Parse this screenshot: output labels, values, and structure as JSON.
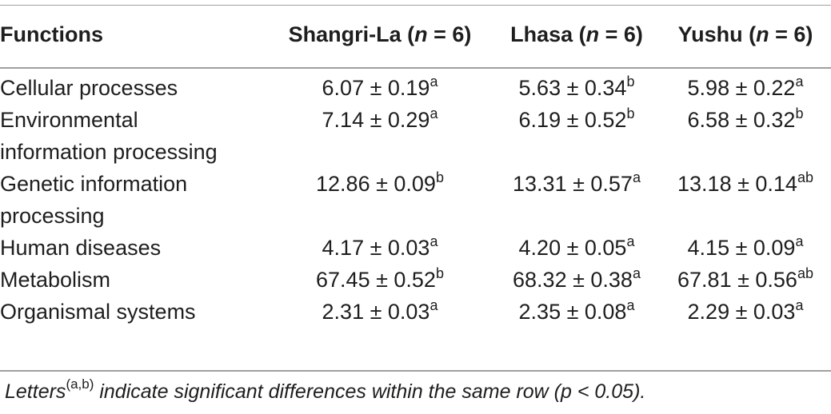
{
  "table": {
    "headers": {
      "functions": "Functions",
      "shangrila_name": "Shangri-La",
      "lhasa_name": "Lhasa",
      "yushu_name": "Yushu",
      "n_open": "(",
      "n_var": "n",
      "n_eq": " = 6)"
    },
    "rows": [
      {
        "function_lines": [
          "Cellular processes"
        ],
        "shangrila": "6.07 ± 0.19",
        "shangrila_sup": "a",
        "lhasa": "5.63 ± 0.34",
        "lhasa_sup": "b",
        "yushu": "5.98 ± 0.22",
        "yushu_sup": "a"
      },
      {
        "function_lines": [
          "Environmental",
          "information processing"
        ],
        "shangrila": "7.14 ± 0.29",
        "shangrila_sup": "a",
        "lhasa": "6.19 ± 0.52",
        "lhasa_sup": "b",
        "yushu": "6.58 ± 0.32",
        "yushu_sup": "b"
      },
      {
        "function_lines": [
          "Genetic information",
          "processing"
        ],
        "shangrila": "12.86 ± 0.09",
        "shangrila_sup": "b",
        "lhasa": "13.31 ± 0.57",
        "lhasa_sup": "a",
        "yushu": "13.18 ± 0.14",
        "yushu_sup": "ab"
      },
      {
        "function_lines": [
          "Human diseases"
        ],
        "shangrila": "4.17 ± 0.03",
        "shangrila_sup": "a",
        "lhasa": "4.20 ± 0.05",
        "lhasa_sup": "a",
        "yushu": "4.15 ± 0.09",
        "yushu_sup": "a"
      },
      {
        "function_lines": [
          "Metabolism"
        ],
        "shangrila": "67.45 ± 0.52",
        "shangrila_sup": "b",
        "lhasa": "68.32 ± 0.38",
        "lhasa_sup": "a",
        "yushu": "67.81 ± 0.56",
        "yushu_sup": "ab"
      },
      {
        "function_lines": [
          "Organismal systems"
        ],
        "shangrila": "2.31 ± 0.03",
        "shangrila_sup": "a",
        "lhasa": "2.35 ± 0.08",
        "lhasa_sup": "a",
        "yushu": "2.29 ± 0.03",
        "yushu_sup": "a"
      }
    ]
  },
  "footnote": {
    "word": "Letters",
    "sup": "(a,b)",
    "rest": " indicate significant differences within the same row (p < 0.05)."
  },
  "colors": {
    "rule": "#a0a0a0",
    "text": "#1e1e1e"
  }
}
